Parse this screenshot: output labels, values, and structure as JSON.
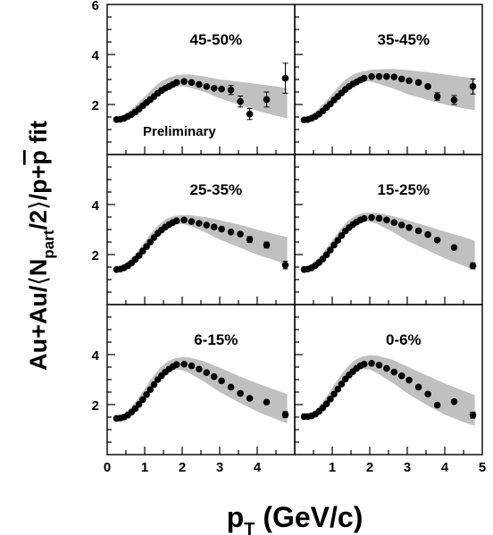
{
  "chart_data": {
    "type": "scatter",
    "xlabel": {
      "main": "p",
      "sub": "T",
      "rest": " (GeV/c)"
    },
    "ylabel": {
      "pre": "Au+Au/",
      "lang": "⟨",
      "npart": "N",
      "sub": "part",
      "post": "/2",
      "rang": "⟩",
      "mid": "/p+",
      "pbar": "p",
      "tail": " fit"
    },
    "x_ticks_left": [
      "0",
      "1",
      "2",
      "3",
      "4"
    ],
    "x_ticks_right": [
      "1",
      "2",
      "3",
      "4",
      "5"
    ],
    "y_ticks": [
      "2",
      "4",
      "6"
    ],
    "xlim": [
      0,
      5
    ],
    "ylim": [
      0,
      6
    ],
    "annotation": "Preliminary",
    "band_color": "#c0c0c0",
    "marker_color": "#000000",
    "panels": [
      {
        "label": "45-50%",
        "band": {
          "x": [
            0.2,
            0.4,
            0.6,
            0.8,
            1.0,
            1.2,
            1.4,
            1.6,
            1.8,
            2.0,
            2.2,
            2.6,
            3.0,
            3.5,
            4.0,
            4.5,
            4.8
          ],
          "lo": [
            1.37,
            1.45,
            1.65,
            1.9,
            2.15,
            2.38,
            2.56,
            2.68,
            2.72,
            2.73,
            2.68,
            2.5,
            2.25,
            2.0,
            1.75,
            1.55,
            1.45
          ],
          "hi": [
            1.42,
            1.55,
            1.75,
            2.02,
            2.32,
            2.62,
            2.88,
            3.05,
            3.15,
            3.2,
            3.2,
            3.12,
            3.0,
            2.92,
            2.82,
            2.72,
            2.65
          ]
        },
        "points": [
          {
            "x": 0.25,
            "y": 1.4
          },
          {
            "x": 0.35,
            "y": 1.41
          },
          {
            "x": 0.45,
            "y": 1.45
          },
          {
            "x": 0.55,
            "y": 1.52
          },
          {
            "x": 0.65,
            "y": 1.6
          },
          {
            "x": 0.75,
            "y": 1.7
          },
          {
            "x": 0.85,
            "y": 1.82
          },
          {
            "x": 0.95,
            "y": 1.95
          },
          {
            "x": 1.05,
            "y": 2.08
          },
          {
            "x": 1.15,
            "y": 2.2
          },
          {
            "x": 1.25,
            "y": 2.32
          },
          {
            "x": 1.35,
            "y": 2.45
          },
          {
            "x": 1.45,
            "y": 2.56
          },
          {
            "x": 1.55,
            "y": 2.65
          },
          {
            "x": 1.65,
            "y": 2.72
          },
          {
            "x": 1.75,
            "y": 2.8
          },
          {
            "x": 1.85,
            "y": 2.88
          },
          {
            "x": 2.05,
            "y": 2.92
          },
          {
            "x": 2.25,
            "y": 2.88
          },
          {
            "x": 2.45,
            "y": 2.8
          },
          {
            "x": 2.65,
            "y": 2.72
          },
          {
            "x": 2.85,
            "y": 2.65
          },
          {
            "x": 3.05,
            "y": 2.62
          },
          {
            "x": 3.3,
            "y": 2.58,
            "err": 0.18
          },
          {
            "x": 3.55,
            "y": 2.12,
            "err": 0.22
          },
          {
            "x": 3.8,
            "y": 1.62,
            "err": 0.22
          },
          {
            "x": 4.25,
            "y": 2.2,
            "err": 0.3
          },
          {
            "x": 4.75,
            "y": 3.05,
            "err": 0.6
          }
        ]
      },
      {
        "label": "35-45%",
        "band": {
          "x": [
            0.2,
            0.4,
            0.6,
            0.8,
            1.0,
            1.2,
            1.4,
            1.6,
            1.8,
            2.0,
            2.2,
            2.6,
            3.0,
            3.5,
            4.0,
            4.5,
            4.8
          ],
          "lo": [
            1.37,
            1.45,
            1.65,
            1.9,
            2.2,
            2.5,
            2.72,
            2.86,
            2.92,
            2.92,
            2.85,
            2.65,
            2.42,
            2.2,
            2.0,
            1.85,
            1.78
          ],
          "hi": [
            1.42,
            1.55,
            1.78,
            2.08,
            2.42,
            2.78,
            3.05,
            3.22,
            3.32,
            3.38,
            3.4,
            3.42,
            3.38,
            3.3,
            3.2,
            3.1,
            3.05
          ]
        },
        "points": [
          {
            "x": 0.25,
            "y": 1.38
          },
          {
            "x": 0.35,
            "y": 1.4
          },
          {
            "x": 0.45,
            "y": 1.45
          },
          {
            "x": 0.55,
            "y": 1.52
          },
          {
            "x": 0.65,
            "y": 1.62
          },
          {
            "x": 0.75,
            "y": 1.74
          },
          {
            "x": 0.85,
            "y": 1.88
          },
          {
            "x": 0.95,
            "y": 2.02
          },
          {
            "x": 1.05,
            "y": 2.18
          },
          {
            "x": 1.15,
            "y": 2.32
          },
          {
            "x": 1.25,
            "y": 2.46
          },
          {
            "x": 1.35,
            "y": 2.6
          },
          {
            "x": 1.45,
            "y": 2.72
          },
          {
            "x": 1.55,
            "y": 2.82
          },
          {
            "x": 1.65,
            "y": 2.9
          },
          {
            "x": 1.75,
            "y": 2.98
          },
          {
            "x": 1.85,
            "y": 3.05
          },
          {
            "x": 2.05,
            "y": 3.12
          },
          {
            "x": 2.25,
            "y": 3.12
          },
          {
            "x": 2.45,
            "y": 3.12
          },
          {
            "x": 2.65,
            "y": 3.1
          },
          {
            "x": 2.85,
            "y": 3.02
          },
          {
            "x": 3.05,
            "y": 2.95
          },
          {
            "x": 3.3,
            "y": 2.88
          },
          {
            "x": 3.55,
            "y": 2.72
          },
          {
            "x": 3.8,
            "y": 2.32,
            "err": 0.15
          },
          {
            "x": 4.25,
            "y": 2.18,
            "err": 0.18
          },
          {
            "x": 4.75,
            "y": 2.72,
            "err": 0.3
          }
        ]
      },
      {
        "label": "25-35%",
        "band": {
          "x": [
            0.2,
            0.4,
            0.6,
            0.8,
            1.0,
            1.2,
            1.4,
            1.6,
            1.8,
            2.0,
            2.2,
            2.6,
            3.0,
            3.5,
            4.0,
            4.5,
            4.8
          ],
          "lo": [
            1.37,
            1.45,
            1.65,
            1.92,
            2.25,
            2.6,
            2.9,
            3.1,
            3.2,
            3.22,
            3.15,
            2.9,
            2.6,
            2.3,
            2.0,
            1.75,
            1.6
          ],
          "hi": [
            1.42,
            1.55,
            1.8,
            2.12,
            2.5,
            2.9,
            3.22,
            3.45,
            3.55,
            3.58,
            3.58,
            3.5,
            3.38,
            3.2,
            3.0,
            2.8,
            2.7
          ]
        },
        "points": [
          {
            "x": 0.25,
            "y": 1.4
          },
          {
            "x": 0.35,
            "y": 1.42
          },
          {
            "x": 0.45,
            "y": 1.47
          },
          {
            "x": 0.55,
            "y": 1.55
          },
          {
            "x": 0.65,
            "y": 1.66
          },
          {
            "x": 0.75,
            "y": 1.8
          },
          {
            "x": 0.85,
            "y": 1.96
          },
          {
            "x": 0.95,
            "y": 2.14
          },
          {
            "x": 1.05,
            "y": 2.32
          },
          {
            "x": 1.15,
            "y": 2.5
          },
          {
            "x": 1.25,
            "y": 2.68
          },
          {
            "x": 1.35,
            "y": 2.85
          },
          {
            "x": 1.45,
            "y": 2.98
          },
          {
            "x": 1.55,
            "y": 3.1
          },
          {
            "x": 1.65,
            "y": 3.2
          },
          {
            "x": 1.75,
            "y": 3.28
          },
          {
            "x": 1.85,
            "y": 3.35
          },
          {
            "x": 2.05,
            "y": 3.38
          },
          {
            "x": 2.25,
            "y": 3.32
          },
          {
            "x": 2.45,
            "y": 3.25
          },
          {
            "x": 2.65,
            "y": 3.18
          },
          {
            "x": 2.85,
            "y": 3.1
          },
          {
            "x": 3.05,
            "y": 3.02
          },
          {
            "x": 3.3,
            "y": 2.9
          },
          {
            "x": 3.55,
            "y": 2.82
          },
          {
            "x": 3.8,
            "y": 2.6,
            "err": 0.12
          },
          {
            "x": 4.25,
            "y": 2.38,
            "err": 0.12
          },
          {
            "x": 4.75,
            "y": 1.58,
            "err": 0.15
          }
        ]
      },
      {
        "label": "15-25%",
        "band": {
          "x": [
            0.2,
            0.4,
            0.6,
            0.8,
            1.0,
            1.2,
            1.4,
            1.6,
            1.8,
            2.0,
            2.2,
            2.6,
            3.0,
            3.5,
            4.0,
            4.5,
            4.8
          ],
          "lo": [
            1.37,
            1.45,
            1.66,
            1.95,
            2.3,
            2.68,
            3.0,
            3.22,
            3.32,
            3.32,
            3.22,
            2.92,
            2.55,
            2.2,
            1.85,
            1.55,
            1.4
          ],
          "hi": [
            1.42,
            1.56,
            1.82,
            2.15,
            2.55,
            2.98,
            3.32,
            3.55,
            3.65,
            3.68,
            3.66,
            3.55,
            3.38,
            3.15,
            2.92,
            2.7,
            2.55
          ]
        },
        "points": [
          {
            "x": 0.25,
            "y": 1.4
          },
          {
            "x": 0.35,
            "y": 1.42
          },
          {
            "x": 0.45,
            "y": 1.47
          },
          {
            "x": 0.55,
            "y": 1.56
          },
          {
            "x": 0.65,
            "y": 1.68
          },
          {
            "x": 0.75,
            "y": 1.82
          },
          {
            "x": 0.85,
            "y": 1.99
          },
          {
            "x": 0.95,
            "y": 2.18
          },
          {
            "x": 1.05,
            "y": 2.38
          },
          {
            "x": 1.15,
            "y": 2.57
          },
          {
            "x": 1.25,
            "y": 2.76
          },
          {
            "x": 1.35,
            "y": 2.94
          },
          {
            "x": 1.45,
            "y": 3.08
          },
          {
            "x": 1.55,
            "y": 3.2
          },
          {
            "x": 1.65,
            "y": 3.3
          },
          {
            "x": 1.75,
            "y": 3.38
          },
          {
            "x": 1.85,
            "y": 3.44
          },
          {
            "x": 2.05,
            "y": 3.48
          },
          {
            "x": 2.25,
            "y": 3.45
          },
          {
            "x": 2.45,
            "y": 3.38
          },
          {
            "x": 2.65,
            "y": 3.28
          },
          {
            "x": 2.85,
            "y": 3.18
          },
          {
            "x": 3.05,
            "y": 3.08
          },
          {
            "x": 3.3,
            "y": 2.95
          },
          {
            "x": 3.55,
            "y": 2.8
          },
          {
            "x": 3.8,
            "y": 2.58
          },
          {
            "x": 4.25,
            "y": 2.28
          },
          {
            "x": 4.75,
            "y": 1.55,
            "err": 0.12
          }
        ]
      },
      {
        "label": "6-15%",
        "band": {
          "x": [
            0.2,
            0.4,
            0.6,
            0.8,
            1.0,
            1.2,
            1.4,
            1.6,
            1.8,
            2.0,
            2.2,
            2.6,
            3.0,
            3.5,
            4.0,
            4.5,
            4.8
          ],
          "lo": [
            1.37,
            1.45,
            1.66,
            1.96,
            2.34,
            2.75,
            3.1,
            3.32,
            3.4,
            3.38,
            3.25,
            2.9,
            2.5,
            2.1,
            1.72,
            1.42,
            1.25
          ],
          "hi": [
            1.42,
            1.56,
            1.84,
            2.2,
            2.62,
            3.08,
            3.45,
            3.72,
            3.85,
            3.9,
            3.88,
            3.72,
            3.48,
            3.15,
            2.85,
            2.58,
            2.42
          ]
        },
        "points": [
          {
            "x": 0.25,
            "y": 1.45
          },
          {
            "x": 0.35,
            "y": 1.46
          },
          {
            "x": 0.45,
            "y": 1.5
          },
          {
            "x": 0.55,
            "y": 1.58
          },
          {
            "x": 0.65,
            "y": 1.7
          },
          {
            "x": 0.75,
            "y": 1.84
          },
          {
            "x": 0.85,
            "y": 2.01
          },
          {
            "x": 0.95,
            "y": 2.2
          },
          {
            "x": 1.05,
            "y": 2.4
          },
          {
            "x": 1.15,
            "y": 2.6
          },
          {
            "x": 1.25,
            "y": 2.8
          },
          {
            "x": 1.35,
            "y": 3.0
          },
          {
            "x": 1.45,
            "y": 3.16
          },
          {
            "x": 1.55,
            "y": 3.3
          },
          {
            "x": 1.65,
            "y": 3.42
          },
          {
            "x": 1.75,
            "y": 3.52
          },
          {
            "x": 1.85,
            "y": 3.6
          },
          {
            "x": 2.05,
            "y": 3.62
          },
          {
            "x": 2.25,
            "y": 3.55
          },
          {
            "x": 2.45,
            "y": 3.42
          },
          {
            "x": 2.65,
            "y": 3.28
          },
          {
            "x": 2.85,
            "y": 3.12
          },
          {
            "x": 3.05,
            "y": 2.95
          },
          {
            "x": 3.3,
            "y": 2.7
          },
          {
            "x": 3.55,
            "y": 2.45
          },
          {
            "x": 3.8,
            "y": 2.25
          },
          {
            "x": 4.25,
            "y": 2.1
          },
          {
            "x": 4.75,
            "y": 1.6,
            "err": 0.12
          }
        ]
      },
      {
        "label": "0-6%",
        "band": {
          "x": [
            0.2,
            0.4,
            0.6,
            0.8,
            1.0,
            1.2,
            1.4,
            1.6,
            1.8,
            2.0,
            2.2,
            2.6,
            3.0,
            3.5,
            4.0,
            4.5,
            4.8
          ],
          "lo": [
            1.37,
            1.45,
            1.66,
            1.98,
            2.38,
            2.8,
            3.15,
            3.35,
            3.42,
            3.4,
            3.25,
            2.88,
            2.45,
            2.0,
            1.6,
            1.3,
            1.15
          ],
          "hi": [
            1.42,
            1.56,
            1.85,
            2.22,
            2.66,
            3.12,
            3.5,
            3.78,
            3.92,
            3.98,
            3.96,
            3.8,
            3.52,
            3.18,
            2.85,
            2.55,
            2.38
          ]
        },
        "points": [
          {
            "x": 0.25,
            "y": 1.52
          },
          {
            "x": 0.35,
            "y": 1.52
          },
          {
            "x": 0.45,
            "y": 1.55
          },
          {
            "x": 0.55,
            "y": 1.62
          },
          {
            "x": 0.65,
            "y": 1.73
          },
          {
            "x": 0.75,
            "y": 1.87
          },
          {
            "x": 0.85,
            "y": 2.03
          },
          {
            "x": 0.95,
            "y": 2.22
          },
          {
            "x": 1.05,
            "y": 2.42
          },
          {
            "x": 1.15,
            "y": 2.62
          },
          {
            "x": 1.25,
            "y": 2.82
          },
          {
            "x": 1.35,
            "y": 3.02
          },
          {
            "x": 1.45,
            "y": 3.18
          },
          {
            "x": 1.55,
            "y": 3.32
          },
          {
            "x": 1.65,
            "y": 3.45
          },
          {
            "x": 1.75,
            "y": 3.55
          },
          {
            "x": 1.85,
            "y": 3.62
          },
          {
            "x": 2.05,
            "y": 3.65
          },
          {
            "x": 2.25,
            "y": 3.58
          },
          {
            "x": 2.45,
            "y": 3.45
          },
          {
            "x": 2.65,
            "y": 3.3
          },
          {
            "x": 2.85,
            "y": 3.15
          },
          {
            "x": 3.05,
            "y": 2.98
          },
          {
            "x": 3.3,
            "y": 2.7
          },
          {
            "x": 3.55,
            "y": 2.42
          },
          {
            "x": 3.8,
            "y": 1.98
          },
          {
            "x": 4.25,
            "y": 2.12
          },
          {
            "x": 4.75,
            "y": 1.58,
            "err": 0.12
          }
        ]
      }
    ]
  }
}
